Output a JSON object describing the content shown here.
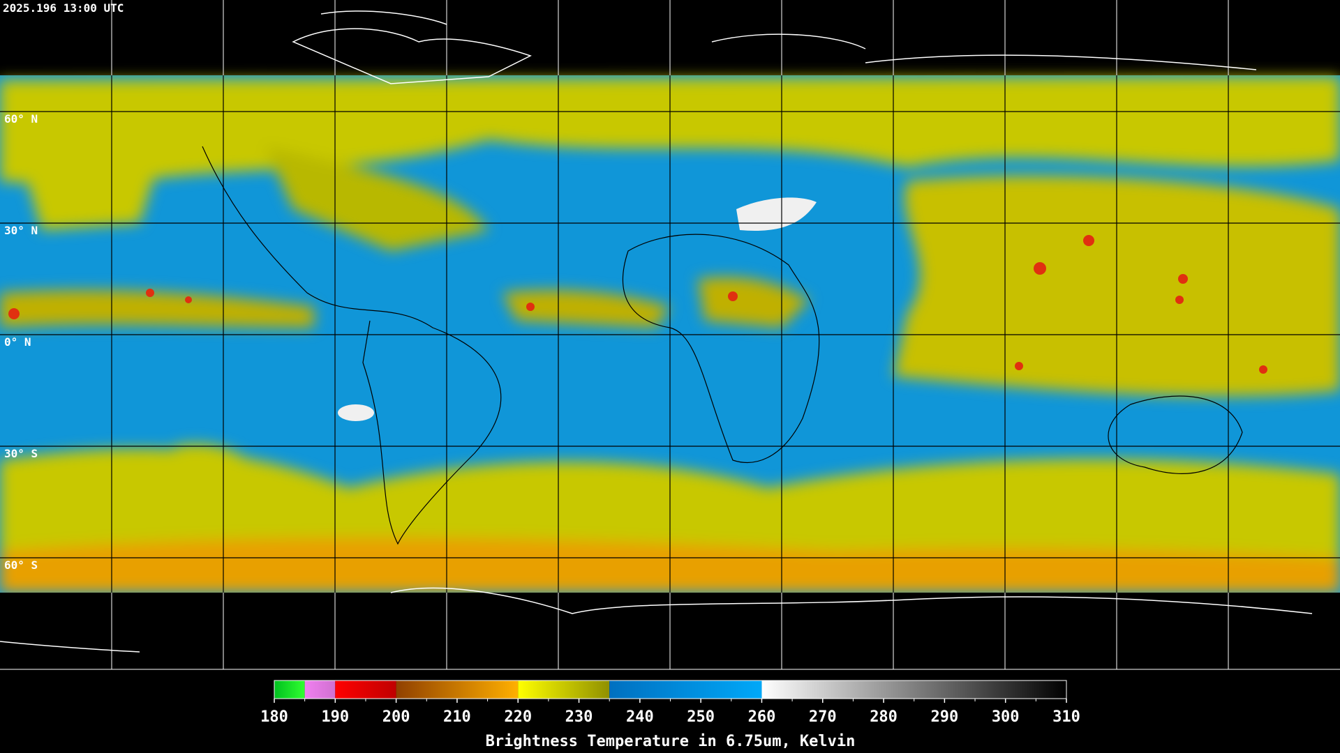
{
  "timestamp": "2025.196 13:00 UTC",
  "latitude_labels": [
    "60° N",
    "30° N",
    "0° N",
    "30° S",
    "60° S"
  ],
  "colorbar": {
    "title": "Brightness Temperature in 6.75um, Kelvin",
    "range": [
      180,
      310
    ],
    "ticks": [
      180,
      190,
      200,
      210,
      220,
      230,
      240,
      250,
      260,
      270,
      280,
      290,
      300,
      310
    ],
    "segments": [
      {
        "from": 180,
        "to": 185,
        "colors": [
          "#00c020",
          "#30ff30"
        ]
      },
      {
        "from": 185,
        "to": 190,
        "colors": [
          "#f080f0",
          "#d070d0"
        ]
      },
      {
        "from": 190,
        "to": 200,
        "colors": [
          "#ff0000",
          "#c00000"
        ]
      },
      {
        "from": 200,
        "to": 220,
        "colors": [
          "#904000",
          "#ffb000"
        ]
      },
      {
        "from": 220,
        "to": 235,
        "colors": [
          "#ffff00",
          "#909000"
        ]
      },
      {
        "from": 235,
        "to": 260,
        "colors": [
          "#0070c0",
          "#00a8f8"
        ]
      },
      {
        "from": 260,
        "to": 310,
        "colors": [
          "#ffffff",
          "#000000"
        ]
      }
    ]
  }
}
